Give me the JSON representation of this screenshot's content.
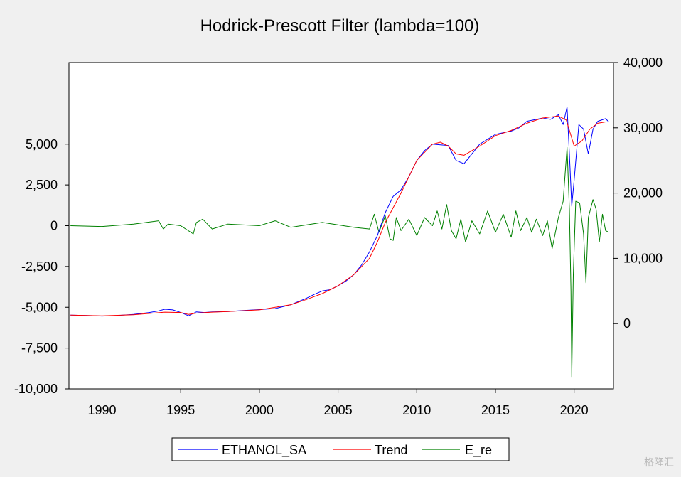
{
  "chart_data": {
    "type": "line",
    "title": "Hodrick-Prescott Filter (lambda=100)",
    "x_ticks": [
      1990,
      1995,
      2000,
      2005,
      2010,
      2015,
      2020
    ],
    "xlim": [
      1987.9,
      2022.5
    ],
    "left_axis": {
      "ylim": [
        -10000,
        10000
      ],
      "ticks": [
        -10000,
        -7500,
        -5000,
        -2500,
        0,
        2500,
        5000
      ],
      "tick_labels": [
        "-10,000",
        "-7,500",
        "-5,000",
        "-2,500",
        "0",
        "2,500",
        "5,000"
      ]
    },
    "right_axis": {
      "ylim": [
        -10000,
        40000
      ],
      "ticks": [
        0,
        10000,
        20000,
        30000,
        40000
      ],
      "tick_labels": [
        "0",
        "10,000",
        "20,000",
        "30,000",
        "40,000"
      ]
    },
    "series": [
      {
        "name": "ETHANOL_SA",
        "axis": "right",
        "color": "#0000ff",
        "x": [
          1988.0,
          1989.0,
          1990.0,
          1991.0,
          1992.0,
          1993.0,
          1993.5,
          1994.0,
          1994.5,
          1995.0,
          1995.5,
          1996.0,
          1996.5,
          1997.0,
          1998.0,
          1999.0,
          2000.0,
          2001.0,
          2002.0,
          2003.0,
          2003.5,
          2004.0,
          2004.5,
          2005.0,
          2005.5,
          2006.0,
          2006.5,
          2007.0,
          2007.5,
          2008.0,
          2008.5,
          2009.0,
          2009.5,
          2010.0,
          2010.5,
          2011.0,
          2011.5,
          2012.0,
          2012.5,
          2013.0,
          2013.5,
          2014.0,
          2015.0,
          2016.0,
          2016.5,
          2017.0,
          2018.0,
          2018.5,
          2019.0,
          2019.3,
          2019.55,
          2019.7,
          2019.85,
          2020.0,
          2020.3,
          2020.6,
          2020.9,
          2021.2,
          2021.5,
          2022.0,
          2022.2
        ],
        "y": [
          1300,
          1250,
          1150,
          1250,
          1400,
          1700,
          1900,
          2200,
          2100,
          1700,
          1200,
          1800,
          1700,
          1800,
          1850,
          2000,
          2150,
          2300,
          2900,
          3900,
          4500,
          5000,
          5200,
          5800,
          6500,
          7500,
          9000,
          11000,
          13500,
          17000,
          19500,
          20500,
          22500,
          25000,
          26500,
          27500,
          27400,
          27300,
          25000,
          24500,
          26000,
          27500,
          29000,
          29500,
          30000,
          31000,
          31500,
          31300,
          32000,
          30500,
          33200,
          26000,
          18000,
          22000,
          30500,
          29800,
          26000,
          29800,
          31000,
          31400,
          30900
        ]
      },
      {
        "name": "Trend",
        "axis": "right",
        "color": "#ff0000",
        "x": [
          1988.0,
          1990.0,
          1992.0,
          1994.0,
          1995.0,
          1995.5,
          1996.0,
          1997.0,
          1998.0,
          2000.0,
          2002.0,
          2003.0,
          2004.0,
          2005.0,
          2006.0,
          2007.0,
          2007.5,
          2008.0,
          2009.0,
          2010.0,
          2011.0,
          2011.5,
          2012.0,
          2012.5,
          2013.0,
          2014.0,
          2015.0,
          2016.0,
          2017.0,
          2018.0,
          2019.0,
          2019.5,
          2020.0,
          2020.5,
          2021.0,
          2021.5,
          2022.0,
          2022.2
        ],
        "y": [
          1300,
          1200,
          1350,
          1750,
          1700,
          1400,
          1600,
          1750,
          1850,
          2100,
          2900,
          3700,
          4600,
          5800,
          7500,
          10000,
          12500,
          15500,
          20000,
          25000,
          27500,
          27800,
          27200,
          26000,
          25800,
          27200,
          28800,
          29600,
          30700,
          31500,
          31800,
          31200,
          27200,
          28000,
          29800,
          30700,
          30900,
          30900
        ]
      },
      {
        "name": "E_re",
        "axis": "left",
        "color": "#008000",
        "x": [
          1988.0,
          1990.0,
          1992.0,
          1993.6,
          1993.9,
          1994.2,
          1995.0,
          1995.8,
          1996.0,
          1996.4,
          1997.0,
          1998.0,
          2000.0,
          2001.0,
          2002.0,
          2004.0,
          2006.0,
          2007.0,
          2007.3,
          2007.6,
          2008.0,
          2008.3,
          2008.5,
          2008.7,
          2009.0,
          2009.5,
          2010.0,
          2010.5,
          2011.0,
          2011.3,
          2011.6,
          2011.9,
          2012.2,
          2012.5,
          2012.8,
          2013.1,
          2013.5,
          2014.0,
          2014.5,
          2015.0,
          2015.5,
          2016.0,
          2016.3,
          2016.6,
          2017.0,
          2017.3,
          2017.6,
          2018.0,
          2018.3,
          2018.6,
          2019.0,
          2019.3,
          2019.55,
          2019.7,
          2019.8,
          2019.85,
          2019.95,
          2020.1,
          2020.35,
          2020.6,
          2020.75,
          2020.9,
          2021.2,
          2021.4,
          2021.6,
          2021.8,
          2022.0,
          2022.2
        ],
        "y": [
          0,
          -50,
          100,
          300,
          -200,
          100,
          0,
          -500,
          200,
          400,
          -200,
          100,
          0,
          300,
          -100,
          200,
          -100,
          -200,
          700,
          -400,
          600,
          -800,
          -900,
          500,
          -300,
          400,
          -600,
          500,
          0,
          900,
          -200,
          1300,
          -300,
          -800,
          400,
          -1000,
          300,
          -500,
          900,
          -400,
          700,
          -700,
          900,
          -300,
          500,
          -400,
          400,
          -600,
          300,
          -1400,
          500,
          1500,
          4800,
          1000,
          -4000,
          -9300,
          -3000,
          1500,
          1400,
          -500,
          -3500,
          500,
          1600,
          1000,
          -1000,
          700,
          -300,
          -400
        ]
      }
    ],
    "legend_position": "bottom"
  },
  "watermark": "格隆汇"
}
